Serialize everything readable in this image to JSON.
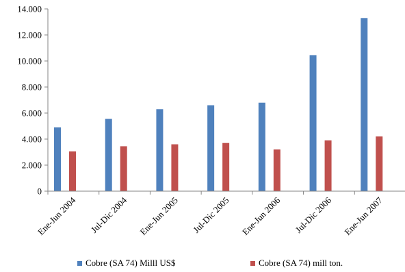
{
  "chart_data": {
    "type": "bar",
    "categories": [
      "Ene-Jun 2004",
      "Jul-Dic 2004",
      "Ene-Jun 2005",
      "Jul-Dic 2005",
      "Ene-Jun 2006",
      "Jul-Dic 2006",
      "Ene-Jun 2007"
    ],
    "series": [
      {
        "name": "Cobre (SA 74) Milll US$",
        "color": "#4F81BD",
        "values": [
          4900,
          5550,
          6300,
          6600,
          6800,
          10450,
          13300
        ]
      },
      {
        "name": "Cobre (SA 74) mill ton.",
        "color": "#C0504D",
        "values": [
          3050,
          3450,
          3600,
          3700,
          3200,
          3900,
          4200
        ]
      }
    ],
    "ylim": [
      0,
      14000
    ],
    "yticks": [
      0,
      2000,
      4000,
      6000,
      8000,
      10000,
      12000,
      14000
    ],
    "ytick_labels": [
      "0",
      "2.000",
      "4.000",
      "6.000",
      "8.000",
      "10.000",
      "12.000",
      "14.000"
    ],
    "xlabel": "",
    "ylabel": "",
    "grid": false,
    "legend_position": "bottom"
  }
}
